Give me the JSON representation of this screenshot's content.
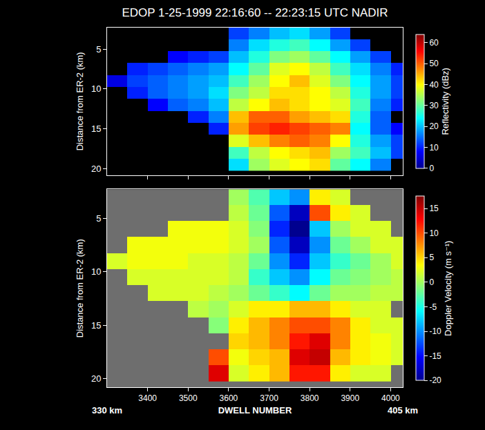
{
  "chart_data": [
    {
      "type": "heatmap",
      "title": "EDOP 1-25-1999 22:16:60 -- 22:23:15 UTC NADIR",
      "y_label": "Distance from ER-2 (km)",
      "tick_labels": "y",
      "x": [
        3325,
        3375,
        3425,
        3475,
        3525,
        3575,
        3625,
        3675,
        3725,
        3775,
        3825,
        3875,
        3925,
        3975,
        4025
      ],
      "y": [
        3,
        4.5,
        6,
        7.5,
        9,
        10.5,
        12,
        13.5,
        15,
        16.5,
        18,
        19.5
      ],
      "z": [
        [
          null,
          null,
          null,
          null,
          null,
          null,
          12,
          16,
          20,
          22,
          18,
          12,
          null,
          null,
          null
        ],
        [
          null,
          null,
          null,
          null,
          null,
          null,
          16,
          22,
          26,
          28,
          24,
          18,
          12,
          null,
          null
        ],
        [
          null,
          null,
          null,
          8,
          10,
          12,
          20,
          26,
          32,
          34,
          30,
          24,
          18,
          12,
          null
        ],
        [
          null,
          10,
          12,
          14,
          16,
          18,
          24,
          30,
          38,
          40,
          36,
          28,
          22,
          16,
          10
        ],
        [
          6,
          12,
          14,
          16,
          18,
          20,
          28,
          34,
          40,
          44,
          38,
          32,
          24,
          18,
          12
        ],
        [
          null,
          10,
          14,
          16,
          18,
          22,
          32,
          36,
          42,
          42,
          40,
          36,
          26,
          18,
          12
        ],
        [
          null,
          null,
          8,
          14,
          16,
          20,
          36,
          40,
          44,
          42,
          40,
          38,
          28,
          16,
          10
        ],
        [
          null,
          null,
          null,
          null,
          10,
          16,
          44,
          50,
          50,
          46,
          44,
          42,
          26,
          14,
          null
        ],
        [
          null,
          null,
          null,
          null,
          null,
          10,
          46,
          52,
          54,
          52,
          50,
          48,
          24,
          14,
          8
        ],
        [
          null,
          null,
          null,
          null,
          null,
          null,
          38,
          44,
          48,
          50,
          48,
          40,
          26,
          18,
          12
        ],
        [
          null,
          null,
          null,
          null,
          null,
          null,
          28,
          36,
          40,
          42,
          44,
          34,
          28,
          20,
          12
        ],
        [
          null,
          null,
          null,
          null,
          null,
          null,
          22,
          34,
          38,
          40,
          42,
          30,
          24,
          16,
          null
        ]
      ],
      "xlim": [
        3300,
        4030
      ],
      "xticks": [
        3400,
        3500,
        3600,
        3700,
        3800,
        3900,
        4000
      ],
      "ylim": [
        20.8,
        2.3
      ],
      "yticks": [
        5,
        10,
        15,
        20
      ],
      "colorbar": {
        "title": "Reflectivity (dBz)",
        "range": [
          0,
          64
        ],
        "ticks": [
          0,
          10,
          20,
          30,
          40,
          50,
          60
        ]
      }
    },
    {
      "type": "heatmap",
      "x_label": "DWELL NUMBER",
      "y_label": "Distance from ER-2 (km)",
      "x": [
        3325,
        3375,
        3425,
        3475,
        3525,
        3575,
        3625,
        3675,
        3725,
        3775,
        3825,
        3875,
        3925,
        3975,
        4025
      ],
      "y": [
        3,
        4.5,
        6,
        7.5,
        9,
        10.5,
        12,
        13.5,
        15,
        16.5,
        18,
        19.5
      ],
      "z": [
        [
          null,
          null,
          null,
          null,
          null,
          null,
          0,
          -3,
          -8,
          -10,
          4,
          2,
          null,
          null,
          null
        ],
        [
          null,
          null,
          null,
          null,
          null,
          null,
          1,
          -2,
          -12,
          -18,
          10,
          4,
          2,
          null,
          null
        ],
        [
          null,
          null,
          null,
          3,
          3,
          3,
          2,
          -1,
          -14,
          -20,
          -8,
          0,
          2,
          2,
          null
        ],
        [
          null,
          3,
          3,
          3,
          3,
          3,
          2,
          0,
          -12,
          -18,
          -10,
          -2,
          0,
          2,
          2
        ],
        [
          2,
          3,
          3,
          3,
          2,
          2,
          1,
          -2,
          -10,
          -14,
          -8,
          -4,
          -2,
          0,
          2
        ],
        [
          null,
          2,
          2,
          2,
          2,
          2,
          1,
          -4,
          -8,
          -10,
          -6,
          -2,
          -1,
          0,
          1
        ],
        [
          null,
          null,
          2,
          2,
          2,
          1,
          0,
          -2,
          -4,
          -6,
          -2,
          0,
          0,
          1,
          1
        ],
        [
          null,
          null,
          null,
          null,
          1,
          0,
          2,
          4,
          4,
          6,
          6,
          4,
          2,
          2,
          null
        ],
        [
          null,
          null,
          null,
          null,
          null,
          -1,
          4,
          6,
          8,
          10,
          10,
          8,
          4,
          2,
          2
        ],
        [
          null,
          null,
          null,
          null,
          null,
          null,
          5,
          6,
          8,
          12,
          14,
          8,
          4,
          3,
          2
        ],
        [
          null,
          null,
          null,
          null,
          null,
          10,
          3,
          5,
          6,
          14,
          15,
          6,
          4,
          3,
          2
        ],
        [
          null,
          null,
          null,
          null,
          null,
          14,
          2,
          4,
          6,
          12,
          12,
          4,
          2,
          2,
          null
        ]
      ],
      "xlim": [
        3300,
        4030
      ],
      "xticks": [
        3400,
        3500,
        3600,
        3700,
        3800,
        3900,
        4000
      ],
      "ylim": [
        20.8,
        2.3
      ],
      "yticks": [
        5,
        10,
        15,
        20
      ],
      "colorbar": {
        "title": "Doppler Velocity (m s⁻¹)",
        "range": [
          -20,
          17.5
        ],
        "ticks": [
          -20,
          -15,
          -10,
          -5,
          0,
          5,
          10,
          15
        ]
      },
      "annotations": [
        {
          "text": "330 km"
        },
        {
          "text": "405 km"
        }
      ]
    }
  ]
}
